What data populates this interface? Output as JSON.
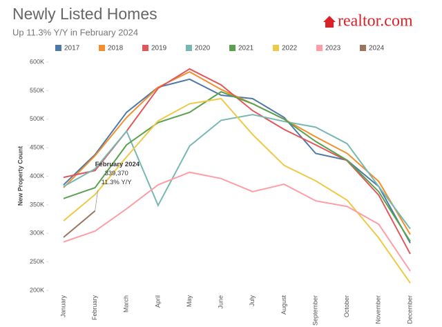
{
  "chart_data": {
    "type": "line",
    "title": "Newly Listed Homes",
    "subtitle": "Up 11.3% Y/Y in February 2024",
    "logo": "realtor.com",
    "y_label": "New Property Count",
    "categories": [
      "January",
      "February",
      "March",
      "April",
      "May",
      "June",
      "July",
      "August",
      "September",
      "October",
      "November",
      "December"
    ],
    "ylim": [
      200000,
      600000
    ],
    "yticks": [
      {
        "value": 200000,
        "label": "200K"
      },
      {
        "value": 250000,
        "label": "250K"
      },
      {
        "value": 300000,
        "label": "300K"
      },
      {
        "value": 350000,
        "label": "350K"
      },
      {
        "value": 400000,
        "label": "400K"
      },
      {
        "value": 450000,
        "label": "450K"
      },
      {
        "value": 500000,
        "label": "500K"
      },
      {
        "value": 550000,
        "label": "550K"
      },
      {
        "value": 600000,
        "label": "600K"
      }
    ],
    "grid": false,
    "legend": "top",
    "series": [
      {
        "name": "2017",
        "color": "#4e79a7",
        "values": [
          385000,
          438000,
          512000,
          556000,
          570000,
          542000,
          536000,
          503000,
          440000,
          428000,
          382000,
          283000
        ]
      },
      {
        "name": "2018",
        "color": "#f28e2b",
        "values": [
          380000,
          436000,
          503000,
          556000,
          583000,
          552000,
          527000,
          500000,
          469000,
          440000,
          391000,
          298000
        ]
      },
      {
        "name": "2019",
        "color": "#e15759",
        "values": [
          398000,
          410000,
          479000,
          554000,
          588000,
          560000,
          515000,
          482000,
          455000,
          427000,
          367000,
          264000
        ]
      },
      {
        "name": "2020",
        "color": "#76b7b2",
        "values": [
          382000,
          413000,
          479000,
          349000,
          453000,
          498000,
          508000,
          496000,
          486000,
          457000,
          382000,
          308000
        ]
      },
      {
        "name": "2021",
        "color": "#59a14f",
        "values": [
          361000,
          380000,
          455000,
          494000,
          512000,
          548000,
          527000,
          500000,
          461000,
          428000,
          373000,
          286000
        ]
      },
      {
        "name": "2022",
        "color": "#edc948",
        "values": [
          322000,
          368000,
          434000,
          497000,
          527000,
          536000,
          473000,
          419000,
          392000,
          358000,
          292000,
          213000
        ]
      },
      {
        "name": "2023",
        "color": "#ff9da7",
        "values": [
          285000,
          304000,
          343000,
          385000,
          407000,
          396000,
          373000,
          386000,
          357000,
          347000,
          316000,
          234000
        ]
      },
      {
        "name": "2024",
        "color": "#9c755f",
        "values": [
          293000,
          339370,
          null,
          null,
          null,
          null,
          null,
          null,
          null,
          null,
          null,
          null
        ]
      }
    ],
    "annotation": {
      "title": "February 2024",
      "value": "339,370",
      "change": "11.3% Y/Y"
    }
  }
}
